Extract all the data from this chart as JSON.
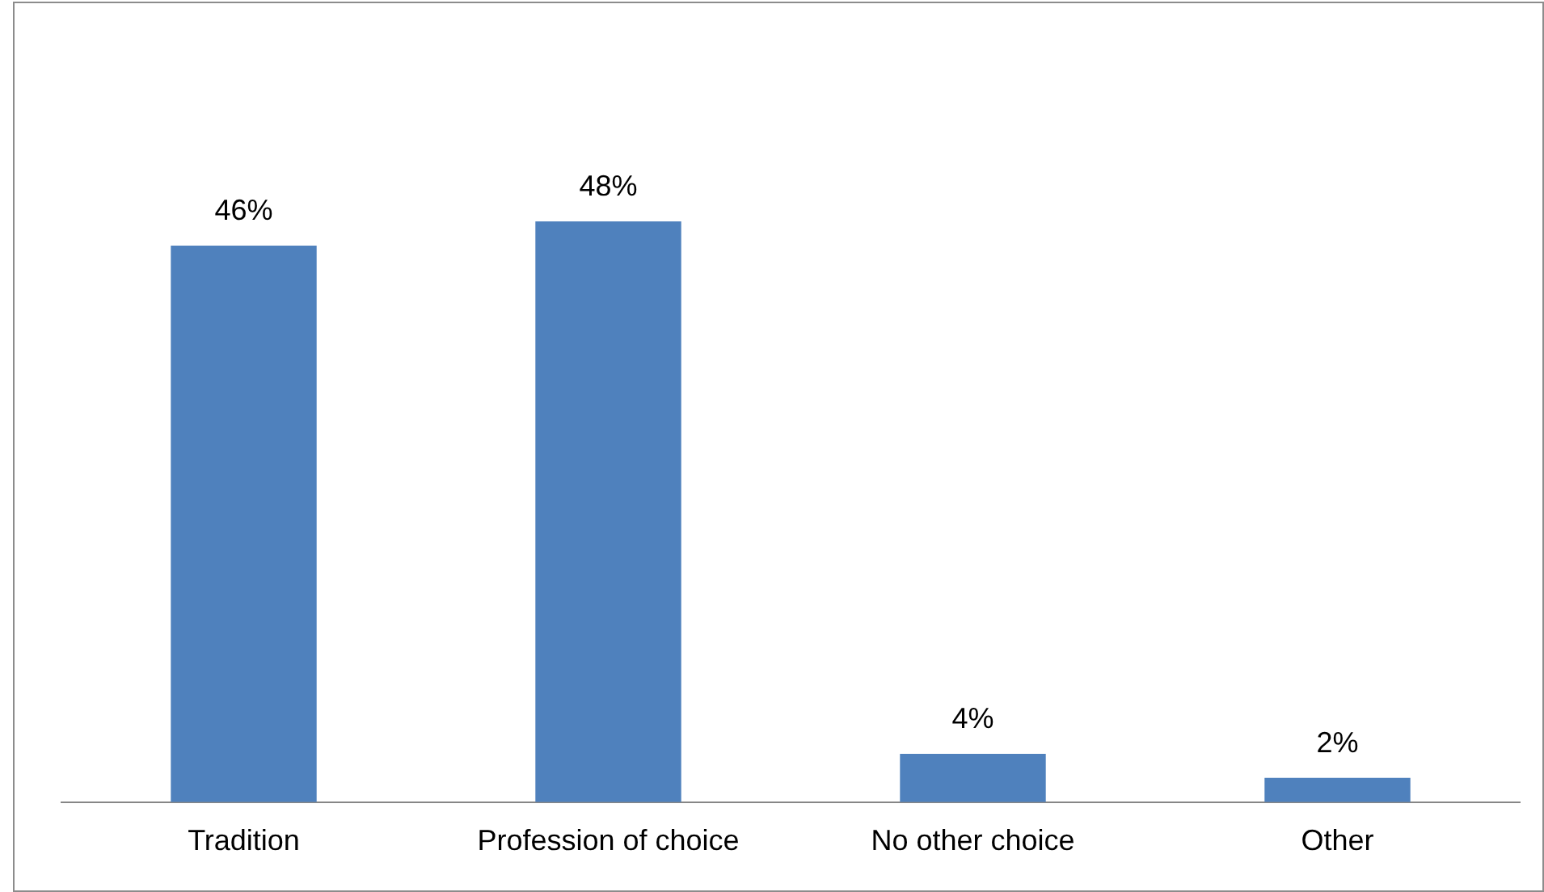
{
  "chart_data": {
    "type": "bar",
    "categories": [
      "Tradition",
      "Profession of choice",
      "No other choice",
      "Other"
    ],
    "values": [
      46,
      48,
      4,
      2
    ],
    "color": "#4f81bd",
    "value_labels": [
      "46%",
      "48%",
      "4%",
      "2%"
    ],
    "tick_labels": "x",
    "grid": false,
    "legend": false
  }
}
